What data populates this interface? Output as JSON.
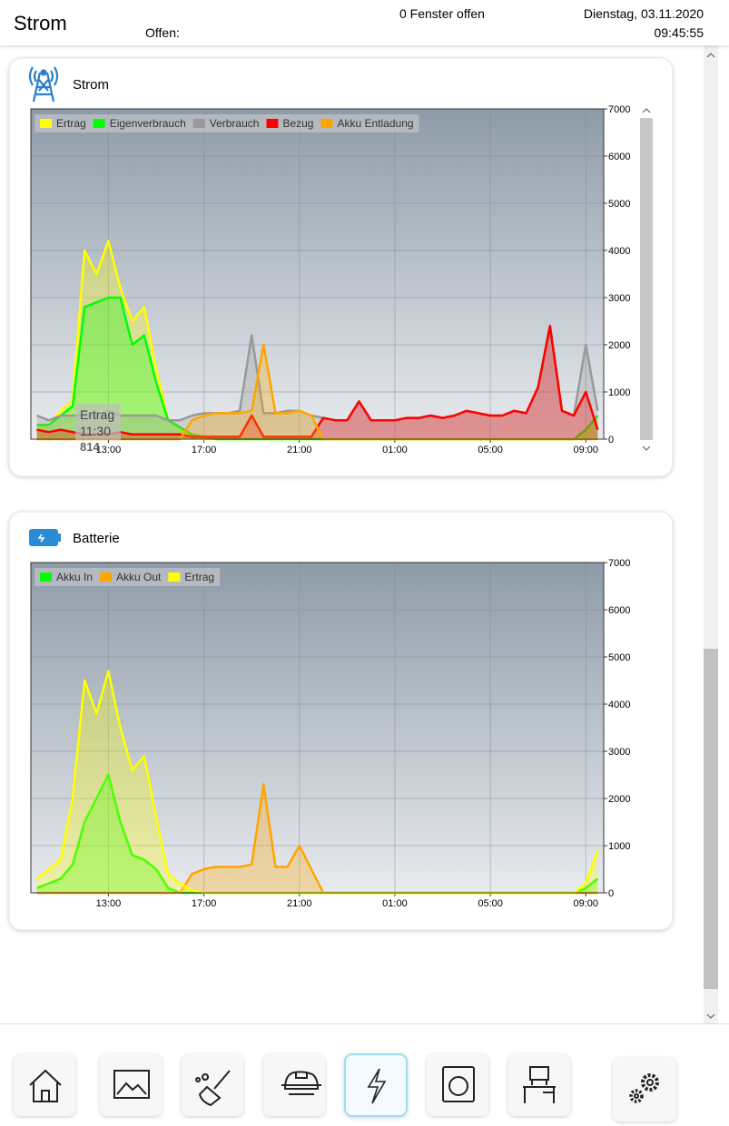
{
  "header": {
    "title": "Strom",
    "open_label": "Offen:",
    "windows": "0 Fenster offen",
    "date": "Dienstag, 03.11.2020",
    "time": "09:45:55"
  },
  "cards": [
    {
      "title": "Strom",
      "tooltip": {
        "series": "Ertrag",
        "time": "11:30",
        "value": 814
      },
      "chart_data": {
        "type": "area",
        "x": [
          "10:00",
          "10:30",
          "11:00",
          "11:30",
          "12:00",
          "12:30",
          "13:00",
          "13:30",
          "14:00",
          "14:30",
          "15:00",
          "15:30",
          "16:00",
          "16:30",
          "17:00",
          "17:30",
          "18:00",
          "18:30",
          "19:00",
          "19:30",
          "20:00",
          "20:30",
          "21:00",
          "21:30",
          "22:00",
          "22:30",
          "23:00",
          "23:30",
          "00:00",
          "00:30",
          "01:00",
          "01:30",
          "02:00",
          "02:30",
          "03:00",
          "03:30",
          "04:00",
          "04:30",
          "05:00",
          "05:30",
          "06:00",
          "06:30",
          "07:00",
          "07:30",
          "08:00",
          "08:30",
          "09:00",
          "09:30"
        ],
        "series": [
          {
            "name": "Ertrag",
            "color": "#ffff00",
            "values": [
              200,
              300,
              600,
              814,
              4000,
              3500,
              4200,
              3200,
              2500,
              2800,
              1500,
              400,
              200,
              50,
              0,
              0,
              0,
              0,
              0,
              0,
              0,
              0,
              0,
              0,
              0,
              0,
              0,
              0,
              0,
              0,
              0,
              0,
              0,
              0,
              0,
              0,
              0,
              0,
              0,
              0,
              0,
              0,
              0,
              0,
              0,
              0,
              100,
              500
            ]
          },
          {
            "name": "Eigenverbrauch",
            "color": "#00ff00",
            "values": [
              300,
              300,
              500,
              700,
              2800,
              2900,
              3000,
              3000,
              2000,
              2200,
              1200,
              400,
              250,
              100,
              50,
              0,
              0,
              0,
              0,
              0,
              0,
              0,
              0,
              0,
              0,
              0,
              0,
              0,
              0,
              0,
              0,
              0,
              0,
              0,
              0,
              0,
              0,
              0,
              0,
              0,
              0,
              0,
              0,
              0,
              0,
              0,
              200,
              500
            ]
          },
          {
            "name": "Verbrauch",
            "color": "#999999",
            "values": [
              500,
              400,
              500,
              500,
              500,
              500,
              600,
              500,
              500,
              500,
              500,
              400,
              400,
              500,
              550,
              550,
              550,
              600,
              2200,
              550,
              550,
              600,
              600,
              500,
              450,
              400,
              400,
              800,
              400,
              400,
              400,
              450,
              450,
              500,
              450,
              500,
              600,
              550,
              500,
              500,
              600,
              550,
              1100,
              2400,
              600,
              500,
              2000,
              600
            ]
          },
          {
            "name": "Bezug",
            "color": "#ff0000",
            "values": [
              200,
              150,
              200,
              150,
              100,
              100,
              100,
              150,
              100,
              100,
              100,
              100,
              100,
              50,
              50,
              50,
              50,
              50,
              500,
              50,
              50,
              50,
              50,
              50,
              450,
              400,
              400,
              800,
              400,
              400,
              400,
              450,
              450,
              500,
              450,
              500,
              600,
              550,
              500,
              500,
              600,
              550,
              1100,
              2400,
              600,
              500,
              1000,
              200
            ]
          },
          {
            "name": "Akku Entladung",
            "color": "#ffa500",
            "values": [
              0,
              0,
              0,
              0,
              0,
              0,
              0,
              0,
              0,
              0,
              0,
              0,
              0,
              400,
              500,
              550,
              550,
              550,
              600,
              2000,
              550,
              550,
              600,
              500,
              0,
              0,
              0,
              0,
              0,
              0,
              0,
              0,
              0,
              0,
              0,
              0,
              0,
              0,
              0,
              0,
              0,
              0,
              0,
              0,
              0,
              0,
              0,
              0
            ]
          }
        ],
        "ylim": [
          0,
          7000
        ],
        "yticks": [
          0,
          1000,
          2000,
          3000,
          4000,
          5000,
          6000,
          7000
        ],
        "xticks": [
          "13:00",
          "17:00",
          "21:00",
          "01:00",
          "05:00",
          "09:00"
        ],
        "grid": true,
        "legend": "top-left"
      }
    },
    {
      "title": "Batterie",
      "chart_data": {
        "type": "area",
        "x": [
          "10:00",
          "10:30",
          "11:00",
          "11:30",
          "12:00",
          "12:30",
          "13:00",
          "13:30",
          "14:00",
          "14:30",
          "15:00",
          "15:30",
          "16:00",
          "16:30",
          "17:00",
          "17:30",
          "18:00",
          "18:30",
          "19:00",
          "19:30",
          "20:00",
          "20:30",
          "21:00",
          "21:30",
          "22:00",
          "22:30",
          "23:00",
          "23:30",
          "00:00",
          "00:30",
          "01:00",
          "01:30",
          "02:00",
          "02:30",
          "03:00",
          "03:30",
          "04:00",
          "04:30",
          "05:00",
          "05:30",
          "06:00",
          "06:30",
          "07:00",
          "07:30",
          "08:00",
          "08:30",
          "09:00",
          "09:30"
        ],
        "series": [
          {
            "name": "Akku In",
            "color": "#00ff00",
            "values": [
              100,
              200,
              300,
              600,
              1500,
              2000,
              2500,
              1500,
              800,
              700,
              500,
              100,
              0,
              0,
              0,
              0,
              0,
              0,
              0,
              0,
              0,
              0,
              0,
              0,
              0,
              0,
              0,
              0,
              0,
              0,
              0,
              0,
              0,
              0,
              0,
              0,
              0,
              0,
              0,
              0,
              0,
              0,
              0,
              0,
              0,
              0,
              100,
              300
            ]
          },
          {
            "name": "Akku Out",
            "color": "#ffa500",
            "values": [
              0,
              0,
              0,
              0,
              0,
              0,
              0,
              0,
              0,
              0,
              0,
              0,
              0,
              400,
              500,
              550,
              550,
              550,
              600,
              2300,
              550,
              550,
              1000,
              500,
              0,
              0,
              0,
              0,
              0,
              0,
              0,
              0,
              0,
              0,
              0,
              0,
              0,
              0,
              0,
              0,
              0,
              0,
              0,
              0,
              0,
              0,
              0,
              0
            ]
          },
          {
            "name": "Ertrag",
            "color": "#ffff00",
            "values": [
              300,
              500,
              700,
              2000,
              4500,
              3800,
              4700,
              3500,
              2600,
              2900,
              1600,
              400,
              200,
              50,
              0,
              0,
              0,
              0,
              0,
              0,
              0,
              0,
              0,
              0,
              0,
              0,
              0,
              0,
              0,
              0,
              0,
              0,
              0,
              0,
              0,
              0,
              0,
              0,
              0,
              0,
              0,
              0,
              0,
              0,
              0,
              0,
              200,
              900
            ]
          }
        ],
        "ylim": [
          0,
          7000
        ],
        "yticks": [
          0,
          1000,
          2000,
          3000,
          4000,
          5000,
          6000,
          7000
        ],
        "xticks": [
          "13:00",
          "17:00",
          "21:00",
          "01:00",
          "05:00",
          "09:00"
        ],
        "grid": true,
        "legend": "top-left"
      }
    }
  ]
}
